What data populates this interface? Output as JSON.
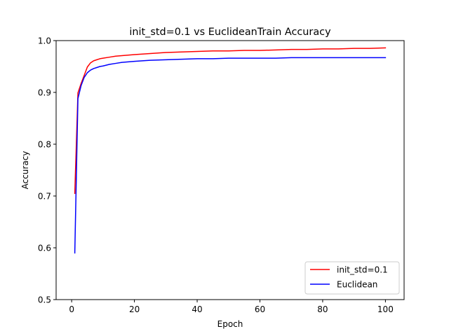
{
  "chart_data": {
    "type": "line",
    "title": "init_std=0.1 vs EuclideanTrain Accuracy",
    "xlabel": "Epoch",
    "ylabel": "Accuracy",
    "xlim": [
      -4.95,
      105.95
    ],
    "ylim": [
      0.5,
      1.0
    ],
    "xticks": [
      0,
      20,
      40,
      60,
      80,
      100
    ],
    "xtick_labels": [
      "0",
      "20",
      "40",
      "60",
      "80",
      "100"
    ],
    "yticks": [
      0.5,
      0.6,
      0.7,
      0.8,
      0.9,
      1.0
    ],
    "ytick_labels": [
      "0.5",
      "0.6",
      "0.7",
      "0.8",
      "0.9",
      "1.0"
    ],
    "grid": false,
    "legend": {
      "placement": "lower-right"
    },
    "x": [
      1,
      2,
      3,
      4,
      5,
      6,
      7,
      8,
      9,
      10,
      12,
      14,
      16,
      18,
      20,
      25,
      30,
      35,
      40,
      45,
      50,
      55,
      60,
      65,
      70,
      75,
      80,
      85,
      90,
      95,
      100
    ],
    "series": [
      {
        "name": "init_std=0.1",
        "color": "#ff0000",
        "values": [
          0.705,
          0.899,
          0.917,
          0.933,
          0.949,
          0.957,
          0.961,
          0.963,
          0.965,
          0.966,
          0.968,
          0.97,
          0.971,
          0.972,
          0.973,
          0.975,
          0.977,
          0.978,
          0.979,
          0.98,
          0.98,
          0.981,
          0.981,
          0.982,
          0.983,
          0.983,
          0.984,
          0.984,
          0.985,
          0.985,
          0.986
        ]
      },
      {
        "name": "Euclidean",
        "color": "#0000ff",
        "values": [
          0.59,
          0.888,
          0.913,
          0.929,
          0.938,
          0.943,
          0.946,
          0.948,
          0.95,
          0.951,
          0.954,
          0.956,
          0.958,
          0.959,
          0.96,
          0.962,
          0.963,
          0.964,
          0.965,
          0.965,
          0.966,
          0.966,
          0.966,
          0.966,
          0.967,
          0.967,
          0.967,
          0.967,
          0.967,
          0.967,
          0.967
        ]
      }
    ]
  }
}
